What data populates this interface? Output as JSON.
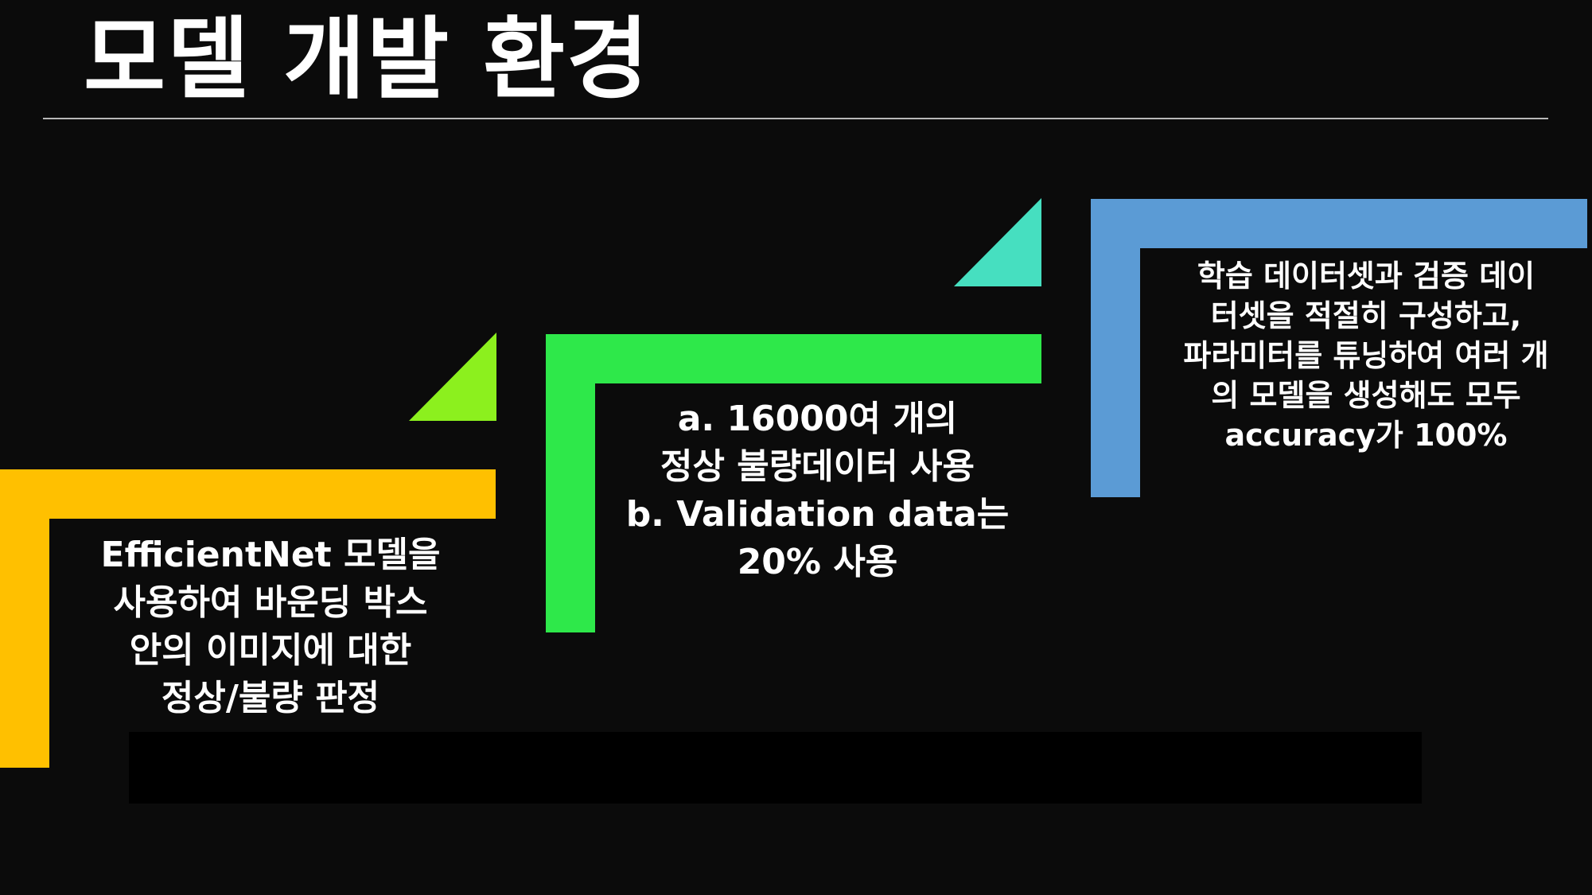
{
  "slide": {
    "title": "모델 개발 환경",
    "colors": {
      "background": "#0b0b0b",
      "step1": "#ffc000",
      "step2": "#2ee84a",
      "step3": "#5b9bd5",
      "arrow1": "#8cf01e",
      "arrow2": "#46dfc0"
    }
  },
  "steps": [
    {
      "text": "EfficientNet 모델을\n사용하여 바운딩 박스\n안의 이미지에 대한\n정상/불량 판정"
    },
    {
      "text": "a. 16000여 개의\n정상 불량데이터 사용\nb. Validation data는\n20% 사용"
    },
    {
      "text": "학습 데이터셋과 검증 데이\n터셋을 적절히 구성하고,\n파라미터를 튜닝하여 여러 개\n의 모델을 생성해도 모두\naccuracy가 100%"
    }
  ]
}
